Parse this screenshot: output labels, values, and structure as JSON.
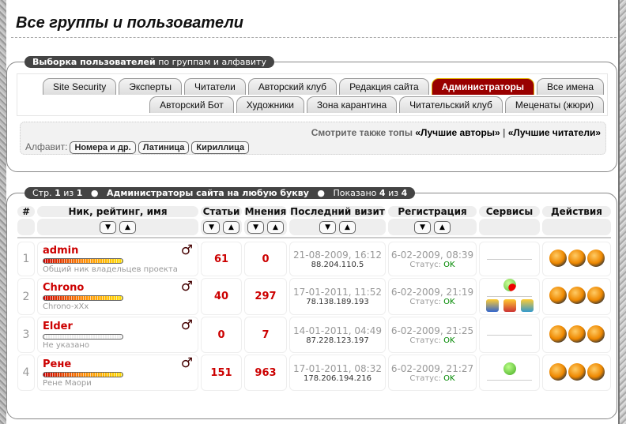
{
  "page_title": "Все группы и пользователи",
  "filter": {
    "label_bold": "Выборка пользователей",
    "label_rest": "по группам и алфавиту",
    "tabs_row1": [
      "Site Security",
      "Эксперты",
      "Читатели",
      "Авторский клуб",
      "Редакция сайта",
      "Администраторы",
      "Все имена"
    ],
    "tabs_row2": [
      "Авторский Бот",
      "Художники",
      "Зона карантина",
      "Читательский клуб",
      "Меценаты (жюри)"
    ],
    "active_tab": "Администраторы",
    "see_also": "Смотрите также топы",
    "top_authors": "«Лучшие авторы»",
    "sep": "|",
    "top_readers": "«Лучшие читатели»",
    "alphabet_label": "Алфавит:",
    "alphabet": [
      "Номера и др.",
      "Латиница",
      "Кириллица"
    ]
  },
  "list": {
    "page_prefix": "Стр.",
    "page": "1",
    "of": "из",
    "pages": "1",
    "bullet": "●",
    "group_title": "Администраторы сайта на любую букву",
    "shown_prefix": "Показано",
    "shown": "4",
    "total": "4",
    "columns": [
      "#",
      "Ник, рейтинг, имя",
      "Статьи",
      "Мнения",
      "Последний визит",
      "Регистрация",
      "Сервисы",
      "Действия"
    ],
    "sort_down": "▼",
    "sort_up": "▲",
    "status_label": "Статус:",
    "rows": [
      {
        "n": "1",
        "nick": "admin",
        "rating_full": true,
        "name": "Общий ник владельцев проекта",
        "articles": "61",
        "opinions": "0",
        "visit": "21-08-2009, 16:12",
        "ip": "88.204.110.5",
        "reg": "6-02-2009, 08:39",
        "status": "OK",
        "services_top": "none",
        "services_bottom": false
      },
      {
        "n": "2",
        "nick": "Chrono",
        "rating_full": true,
        "name": "Chrono-xXx",
        "articles": "40",
        "opinions": "297",
        "visit": "17-01-2011, 11:52",
        "ip": "78.138.189.193",
        "reg": "6-02-2009, 21:19",
        "status": "OK",
        "services_top": "blocked-icon",
        "services_bottom": true
      },
      {
        "n": "3",
        "nick": "Elder",
        "rating_full": false,
        "name": "Не указано",
        "articles": "0",
        "opinions": "7",
        "visit": "14-01-2011, 04:49",
        "ip": "87.228.123.197",
        "reg": "6-02-2009, 21:25",
        "status": "OK",
        "services_top": "none",
        "services_bottom": false
      },
      {
        "n": "4",
        "nick": "Рене",
        "rating_full": true,
        "name": "Рене Маори",
        "articles": "151",
        "opinions": "963",
        "visit": "17-01-2011, 08:32",
        "ip": "178.206.194.216",
        "reg": "6-02-2009, 21:27",
        "status": "OK",
        "services_top": "check-icon",
        "services_bottom": false
      }
    ]
  },
  "colors": {
    "accent": "#990000",
    "nick": "#cc0000",
    "ok": "#008800"
  }
}
